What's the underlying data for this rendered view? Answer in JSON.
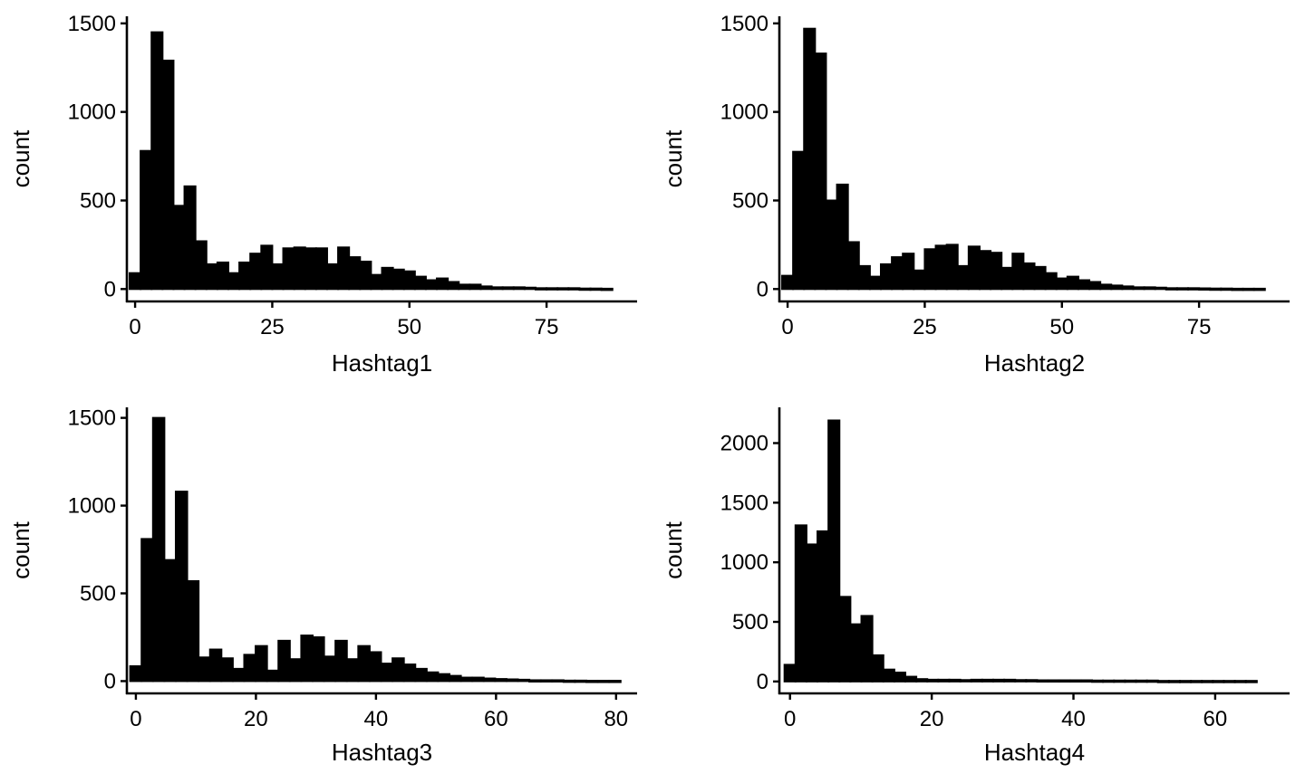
{
  "chart_data": [
    {
      "type": "bar",
      "xlabel": "Hashtag1",
      "ylabel": "count",
      "xticks": [
        0,
        25,
        50,
        75
      ],
      "yticks": [
        0,
        500,
        1000,
        1500
      ],
      "xlim": [
        -1.5,
        91.5
      ],
      "ylim": [
        -70,
        1540
      ],
      "bin_width": 2.0,
      "bin_start": -1.0,
      "values": [
        90,
        780,
        1450,
        1290,
        470,
        580,
        270,
        140,
        150,
        90,
        150,
        200,
        245,
        140,
        230,
        235,
        230,
        230,
        140,
        235,
        180,
        155,
        80,
        120,
        110,
        100,
        70,
        50,
        60,
        40,
        25,
        25,
        15,
        10,
        10,
        10,
        8,
        5,
        5,
        5,
        5,
        3,
        3,
        2
      ]
    },
    {
      "type": "bar",
      "xlabel": "Hashtag2",
      "ylabel": "count",
      "xticks": [
        0,
        25,
        50,
        75
      ],
      "yticks": [
        0,
        500,
        1000,
        1500
      ],
      "xlim": [
        -1.5,
        91.5
      ],
      "ylim": [
        -70,
        1540
      ],
      "bin_width": 2.0,
      "bin_start": -1.0,
      "values": [
        75,
        775,
        1470,
        1330,
        500,
        590,
        265,
        130,
        70,
        140,
        180,
        200,
        105,
        225,
        245,
        250,
        130,
        240,
        215,
        205,
        120,
        200,
        145,
        125,
        90,
        60,
        70,
        50,
        40,
        25,
        20,
        15,
        10,
        10,
        8,
        5,
        5,
        5,
        4,
        3,
        3,
        2,
        2,
        2
      ]
    },
    {
      "type": "bar",
      "xlabel": "Hashtag3",
      "ylabel": "count",
      "xticks": [
        0,
        20,
        40,
        60,
        80
      ],
      "yticks": [
        0,
        500,
        1000,
        1500
      ],
      "xlim": [
        -1.5,
        83.5
      ],
      "ylim": [
        -70,
        1560
      ],
      "bin_width": 1.9,
      "bin_start": -0.95,
      "values": [
        85,
        810,
        1500,
        690,
        1080,
        570,
        135,
        180,
        130,
        70,
        150,
        200,
        60,
        230,
        125,
        260,
        250,
        140,
        230,
        125,
        200,
        165,
        100,
        130,
        95,
        70,
        50,
        40,
        30,
        20,
        20,
        15,
        12,
        10,
        8,
        5,
        5,
        5,
        3,
        3,
        2,
        2,
        2
      ]
    },
    {
      "type": "bar",
      "xlabel": "Hashtag4",
      "ylabel": "count",
      "xticks": [
        0,
        20,
        40,
        60
      ],
      "yticks": [
        0,
        500,
        1000,
        1500,
        2000
      ],
      "xlim": [
        -1.5,
        70.5
      ],
      "ylim": [
        -100,
        2300
      ],
      "bin_width": 1.55,
      "bin_start": -0.775,
      "values": [
        140,
        1310,
        1150,
        1260,
        2190,
        710,
        480,
        550,
        220,
        100,
        75,
        40,
        20,
        15,
        15,
        15,
        12,
        15,
        15,
        15,
        15,
        12,
        12,
        10,
        10,
        10,
        10,
        10,
        8,
        8,
        8,
        8,
        8,
        8,
        5,
        5,
        5,
        5,
        5,
        5,
        5,
        5,
        5
      ]
    }
  ]
}
